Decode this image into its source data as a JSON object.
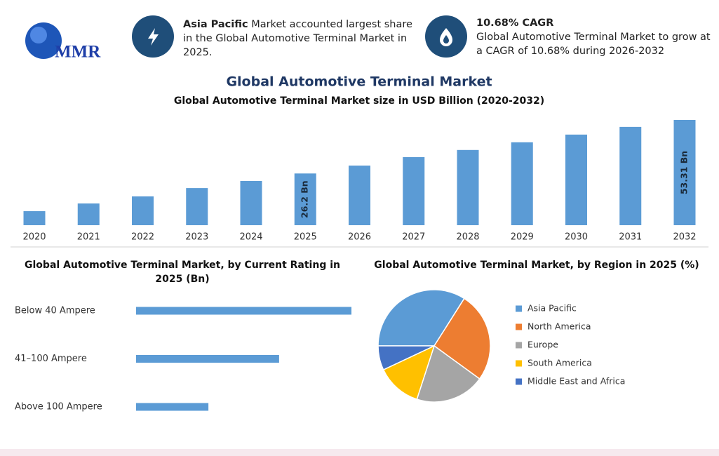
{
  "header": {
    "logo": "MMR",
    "stat1": {
      "highlight": "Asia Pacific",
      "text": "Market accounted largest share in the Global Automotive Terminal Market in 2025."
    },
    "stat2": {
      "title": "10.68% CAGR",
      "text": "Global Automotive Terminal Market to grow at a CAGR of 10.68% during 2026-2032"
    }
  },
  "title": "Global Automotive Terminal Market",
  "chart_data": [
    {
      "type": "bar",
      "title": "Global Automotive Terminal Market size in USD Billion (2020-2032)",
      "categories": [
        "2020",
        "2021",
        "2022",
        "2023",
        "2024",
        "2025",
        "2026",
        "2027",
        "2028",
        "2029",
        "2030",
        "2031",
        "2032"
      ],
      "values": [
        7.1,
        11.0,
        14.6,
        18.8,
        22.4,
        26.2,
        30.2,
        34.5,
        38.1,
        42.0,
        45.9,
        49.8,
        53.31
      ],
      "value_labels": [
        null,
        null,
        null,
        null,
        null,
        "26.2 Bn",
        null,
        null,
        null,
        null,
        null,
        null,
        "53.31 Bn"
      ],
      "color": "#5b9bd5"
    },
    {
      "type": "hbar",
      "title": "Global Automotive Terminal Market, by Current Rating in 2025 (Bn)",
      "categories": [
        "Below 40 Ampere",
        "41–100 Ampere",
        "Above 100 Ampere"
      ],
      "values": [
        13.1,
        8.7,
        4.4
      ],
      "color": "#5b9bd5"
    },
    {
      "type": "pie",
      "title": "Global Automotive Terminal Market, by Region in 2025 (%)",
      "categories": [
        "Asia Pacific",
        "North America",
        "Europe",
        "South America",
        "Middle East and Africa"
      ],
      "values": [
        34,
        26,
        20,
        13,
        7
      ],
      "colors": [
        "#5b9bd5",
        "#ed7d31",
        "#a5a5a5",
        "#ffc000",
        "#4472c4"
      ]
    }
  ]
}
